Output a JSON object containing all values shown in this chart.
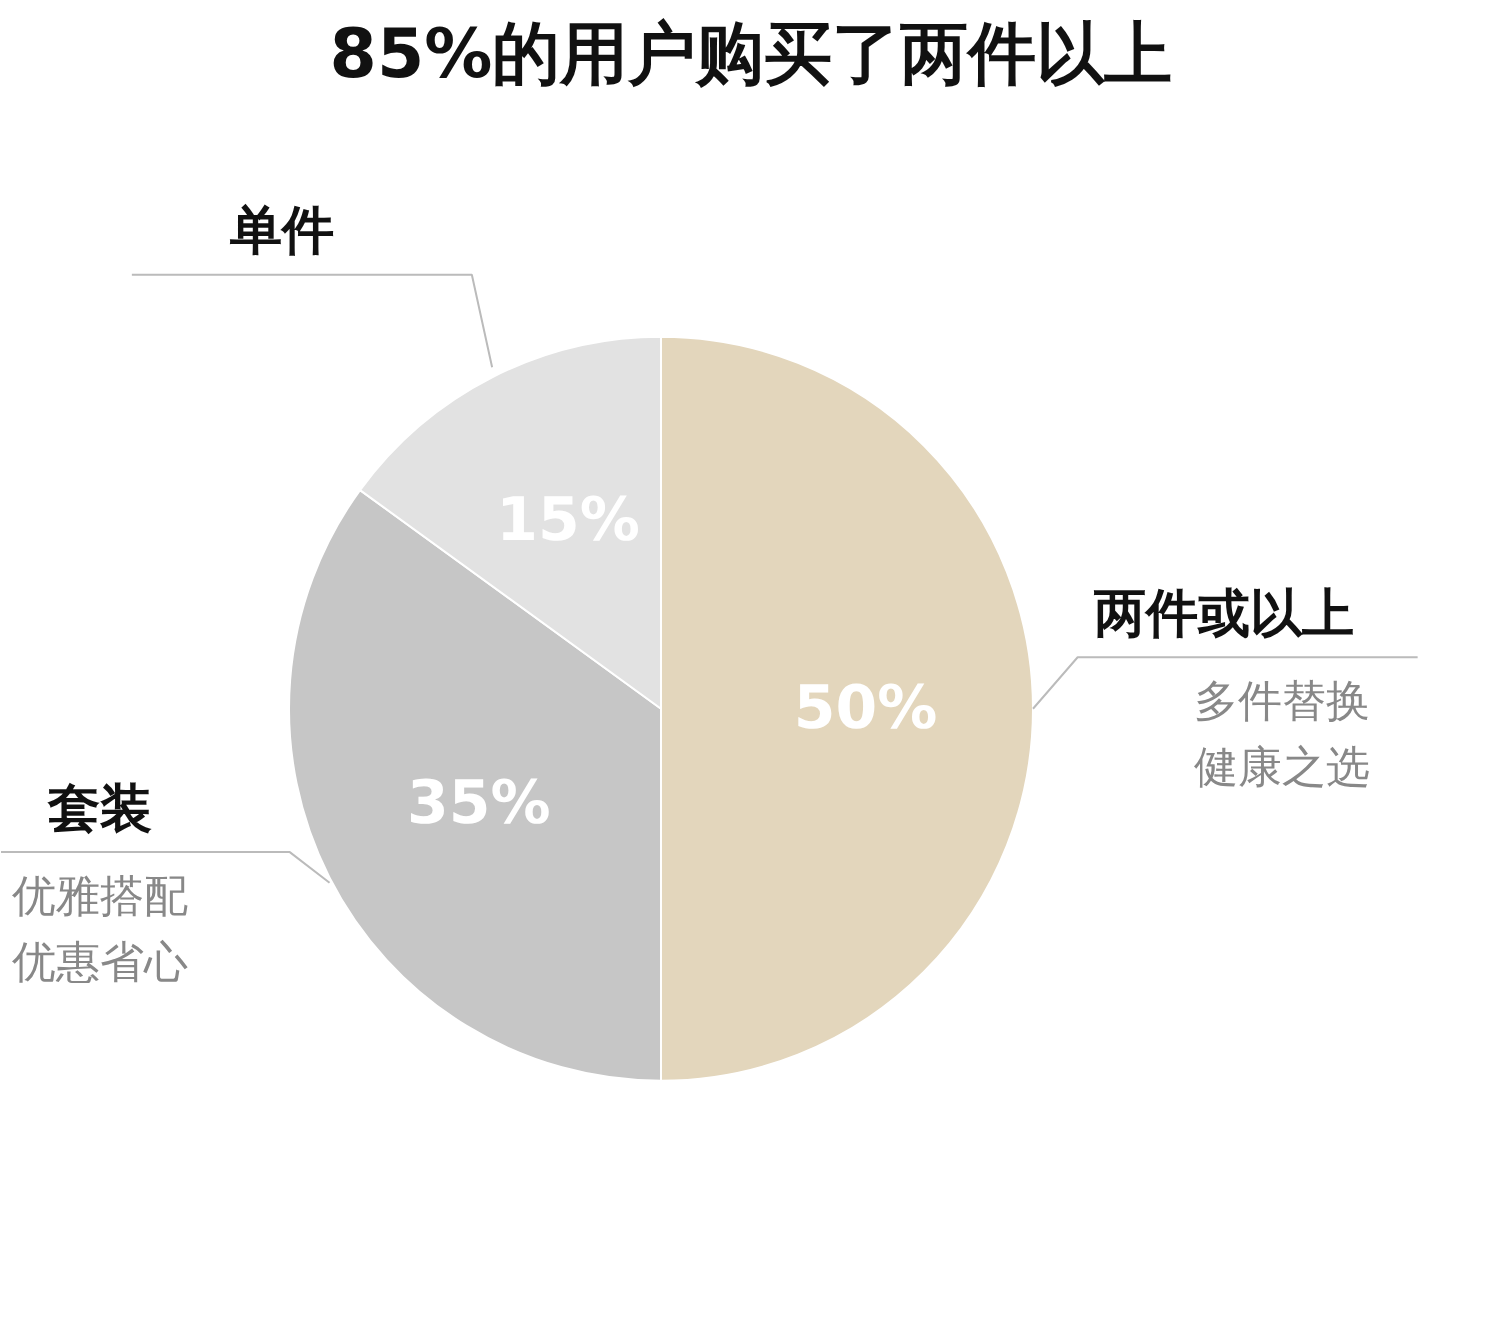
{
  "chart_data": {
    "type": "pie",
    "title": "85%的用户购买了两件以上",
    "categories": [
      "两件或以上",
      "套装",
      "单件"
    ],
    "values": [
      50,
      35,
      15
    ],
    "colors": [
      "#e3d6bc",
      "#c6c6c6",
      "#e2e2e2"
    ],
    "value_labels": [
      "50%",
      "35%",
      "15%"
    ],
    "annotations": [
      "多件替换",
      "健康之选",
      "优雅搭配",
      "优惠省心"
    ]
  }
}
